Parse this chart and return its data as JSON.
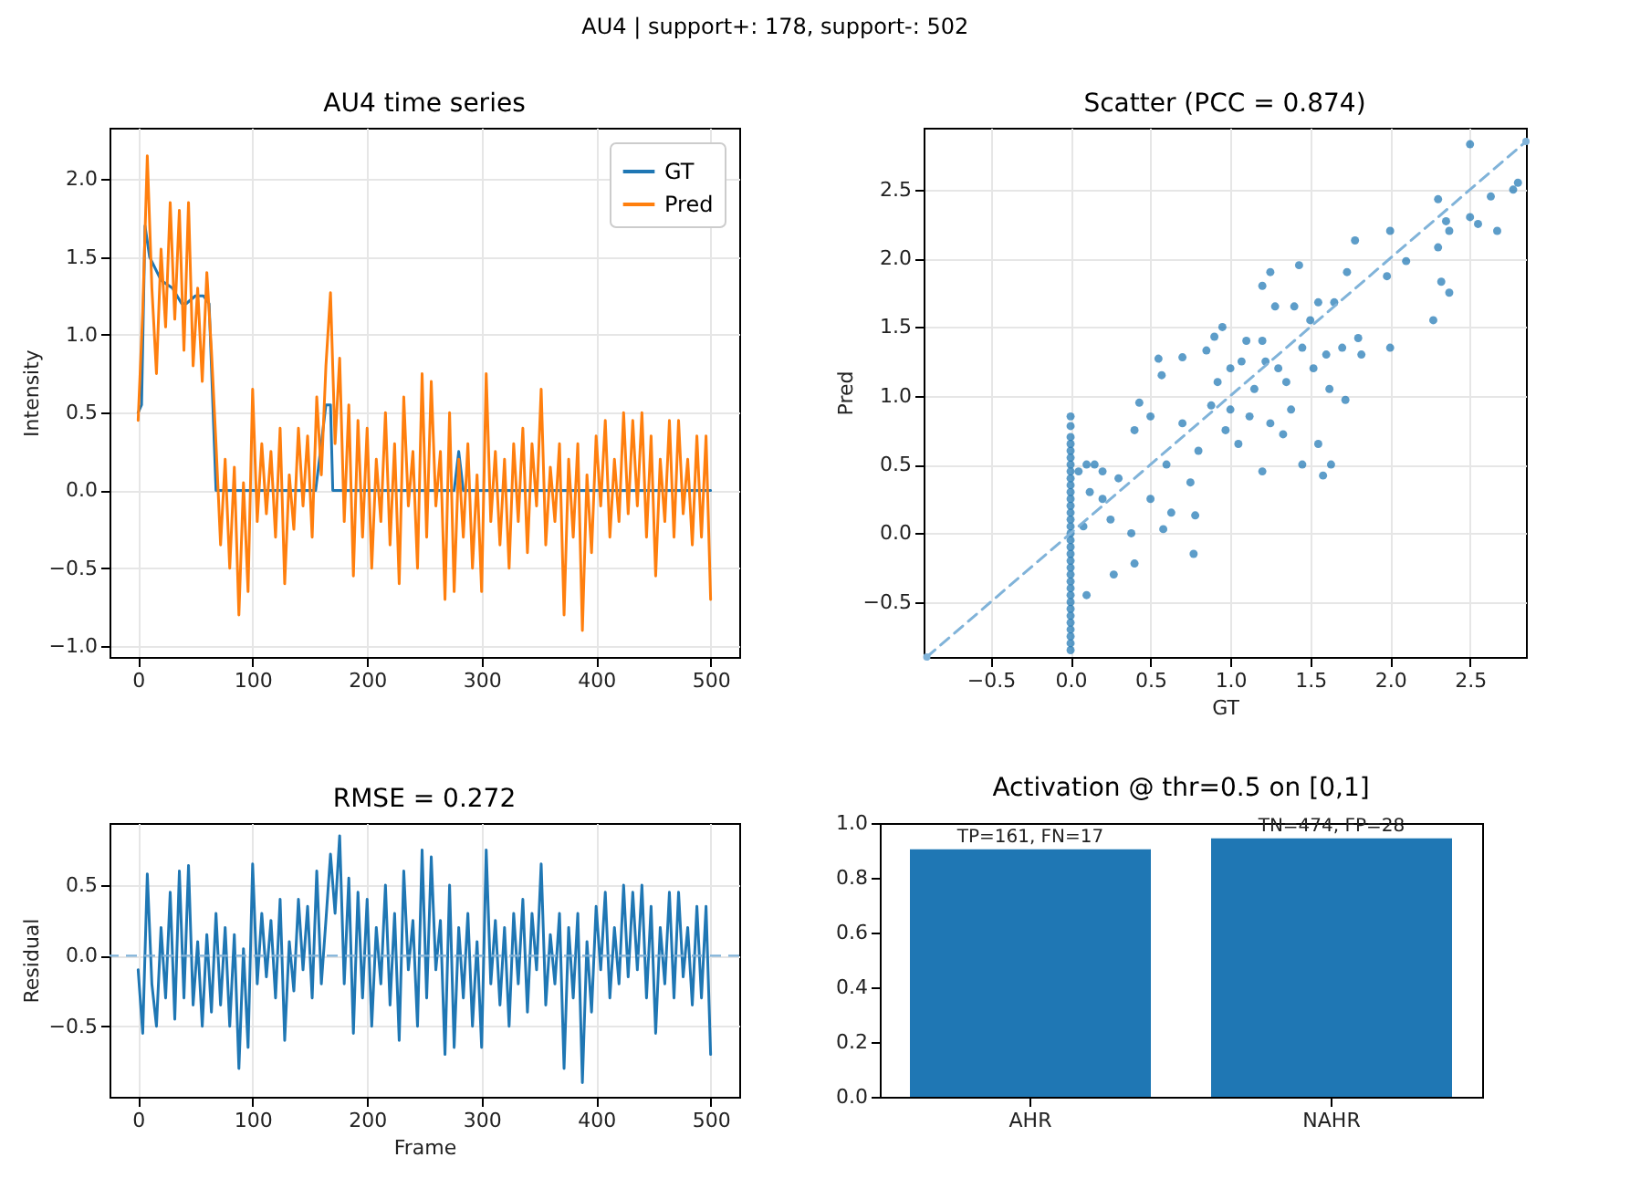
{
  "chart_data": [
    {
      "type": "line",
      "title": "AU4 time series",
      "ylabel": "Intensity",
      "annotations": [
        "AU4  |  support+: 178, support-: 502"
      ],
      "xlim": [
        -25,
        525
      ],
      "xticks": [
        0,
        100,
        200,
        300,
        400,
        500
      ],
      "ylim": [
        -1.07,
        2.33
      ],
      "yticks": [
        {
          "value": -1,
          "label": "−1.0"
        },
        {
          "value": -0.5,
          "label": "−0.5"
        },
        {
          "value": 0,
          "label": "0.0"
        },
        {
          "value": 0.5,
          "label": "0.5"
        },
        {
          "value": 1,
          "label": "1.0"
        },
        {
          "value": 1.5,
          "label": "1.5"
        },
        {
          "value": 2,
          "label": "2.0"
        }
      ],
      "grid": true,
      "legend": "top right",
      "line_style": "solid",
      "x": [
        0,
        4,
        8,
        12,
        16,
        20,
        24,
        28,
        32,
        36,
        40,
        44,
        48,
        52,
        56,
        60,
        64,
        68,
        72,
        76,
        80,
        84,
        88,
        92,
        96,
        100,
        104,
        108,
        112,
        116,
        120,
        124,
        128,
        132,
        136,
        140,
        144,
        148,
        152,
        156,
        160,
        164,
        168,
        172,
        176,
        180,
        184,
        188,
        192,
        196,
        200,
        204,
        208,
        212,
        216,
        220,
        224,
        228,
        232,
        236,
        240,
        244,
        248,
        252,
        256,
        260,
        264,
        268,
        272,
        276,
        280,
        284,
        288,
        292,
        296,
        300,
        304,
        308,
        312,
        316,
        320,
        324,
        328,
        332,
        336,
        340,
        344,
        348,
        352,
        356,
        360,
        364,
        368,
        372,
        376,
        380,
        384,
        388,
        392,
        396,
        400,
        404,
        408,
        412,
        416,
        420,
        424,
        428,
        432,
        436,
        440,
        444,
        448,
        452,
        456,
        460,
        464,
        468,
        472,
        476,
        480,
        484,
        488,
        492,
        496,
        500
      ],
      "series": [
        {
          "name": "GT",
          "color": "#1f77b4",
          "x": [
            0,
            3,
            6,
            10,
            20,
            30,
            38,
            42,
            50,
            57,
            62,
            68,
            155,
            160,
            164,
            168,
            170,
            276,
            280,
            284,
            500
          ],
          "values": [
            0.5,
            0.55,
            1.7,
            1.5,
            1.35,
            1.3,
            1.2,
            1.2,
            1.25,
            1.25,
            1.2,
            0,
            0,
            0.3,
            0.55,
            0.55,
            0,
            0,
            0.25,
            0,
            0
          ]
        },
        {
          "name": "Pred",
          "color": "#ff7f0e",
          "values": [
            0.45,
            1.15,
            2.15,
            1.3,
            0.75,
            1.55,
            1.05,
            1.85,
            1.1,
            1.8,
            0.9,
            1.85,
            0.8,
            1.3,
            0.7,
            1.4,
            0.9,
            0.3,
            -0.35,
            0.2,
            -0.5,
            0.15,
            -0.8,
            0.05,
            -0.65,
            0.65,
            -0.2,
            0.3,
            -0.15,
            0.25,
            -0.3,
            0.4,
            -0.6,
            0.1,
            -0.25,
            0.4,
            -0.1,
            0.35,
            -0.3,
            0.6,
            0.1,
            0.8,
            1.27,
            0.3,
            0.85,
            -0.2,
            0.55,
            -0.55,
            0.45,
            -0.3,
            0.4,
            -0.5,
            0.2,
            -0.2,
            0.5,
            -0.35,
            0.3,
            -0.6,
            0.6,
            -0.1,
            0.25,
            -0.5,
            0.75,
            -0.3,
            0.7,
            -0.1,
            0.25,
            -0.7,
            0.5,
            -0.65,
            0.2,
            -0.3,
            0.3,
            -0.5,
            0.1,
            -0.65,
            0.75,
            -0.2,
            0.25,
            -0.35,
            0.2,
            -0.5,
            0.3,
            -0.2,
            0.4,
            -0.4,
            0.3,
            -0.1,
            0.65,
            -0.35,
            0.15,
            -0.2,
            0.3,
            -0.8,
            0.2,
            -0.3,
            0.3,
            -0.9,
            0.1,
            -0.4,
            0.35,
            -0.1,
            0.45,
            -0.3,
            0.2,
            -0.2,
            0.5,
            -0.15,
            0.45,
            -0.1,
            0.5,
            -0.3,
            0.35,
            -0.55,
            0.2,
            -0.2,
            0.45,
            -0.3,
            0.45,
            -0.15,
            0.2,
            -0.35,
            0.35,
            -0.3,
            0.35,
            -0.7
          ]
        }
      ]
    },
    {
      "type": "scatter",
      "title": "Scatter (PCC = 0.874)",
      "xlabel": "GT",
      "ylabel": "Pred",
      "xlim": [
        -0.92,
        2.85
      ],
      "xticks": [
        {
          "value": -0.5,
          "label": "−0.5"
        },
        {
          "value": 0,
          "label": "0.0"
        },
        {
          "value": 0.5,
          "label": "0.5"
        },
        {
          "value": 1,
          "label": "1.0"
        },
        {
          "value": 1.5,
          "label": "1.5"
        },
        {
          "value": 2,
          "label": "2.0"
        },
        {
          "value": 2.5,
          "label": "2.5"
        }
      ],
      "ylim": [
        -0.9,
        2.95
      ],
      "yticks": [
        {
          "value": -0.5,
          "label": "−0.5"
        },
        {
          "value": 0,
          "label": "0.0"
        },
        {
          "value": 0.5,
          "label": "0.5"
        },
        {
          "value": 1,
          "label": "1.0"
        },
        {
          "value": 1.5,
          "label": "1.5"
        },
        {
          "value": 2,
          "label": "2.0"
        },
        {
          "value": 2.5,
          "label": "2.5"
        }
      ],
      "grid": true,
      "marker": "circle",
      "series": [
        {
          "type": "scatter",
          "color": "#1f77b4",
          "x": [
            0,
            0,
            0,
            0,
            0,
            0,
            0,
            0,
            0,
            0,
            0,
            0,
            0,
            0,
            0,
            0,
            0,
            0,
            0,
            0,
            0,
            0,
            0,
            0,
            0,
            0,
            0,
            0,
            0,
            0,
            0,
            0,
            0,
            0,
            0.05,
            0.1,
            0.1,
            0.08,
            0.12,
            0.15,
            0.2,
            0.2,
            0.25,
            0.27,
            0.3,
            0.38,
            0.4,
            0.4,
            0.43,
            0.5,
            0.5,
            0.55,
            0.57,
            0.6,
            0.63,
            0.58,
            0.7,
            0.7,
            0.75,
            0.77,
            0.78,
            0.8,
            0.85,
            0.88,
            0.9,
            0.92,
            0.95,
            0.97,
            1.0,
            1.0,
            1.05,
            1.07,
            1.1,
            1.12,
            1.15,
            1.2,
            1.2,
            1.2,
            1.22,
            1.25,
            1.25,
            1.28,
            1.3,
            1.33,
            1.35,
            1.38,
            1.4,
            1.43,
            1.45,
            1.45,
            1.5,
            1.52,
            1.55,
            1.55,
            1.58,
            1.6,
            1.62,
            1.63,
            1.65,
            1.7,
            1.72,
            1.73,
            1.78,
            1.8,
            1.82,
            1.98,
            2.0,
            2.0,
            2.1,
            2.27,
            2.3,
            2.3,
            2.32,
            2.35,
            2.37,
            2.37,
            2.5,
            2.5,
            2.55,
            2.63,
            2.67,
            2.77,
            2.8
          ],
          "values": [
            -0.85,
            -0.8,
            -0.75,
            -0.7,
            -0.65,
            -0.6,
            -0.55,
            -0.5,
            -0.45,
            -0.4,
            -0.35,
            -0.3,
            -0.25,
            -0.2,
            -0.15,
            -0.1,
            -0.05,
            0,
            0.05,
            0.1,
            0.15,
            0.2,
            0.25,
            0.3,
            0.35,
            0.4,
            0.45,
            0.5,
            0.55,
            0.6,
            0.65,
            0.7,
            0.78,
            0.85,
            0.45,
            0.5,
            -0.45,
            0.05,
            0.3,
            0.5,
            0.25,
            0.45,
            0.1,
            -0.3,
            0.4,
            0.0,
            -0.22,
            0.75,
            0.95,
            0.85,
            0.25,
            1.27,
            1.15,
            0.5,
            0.15,
            0.03,
            1.28,
            0.8,
            0.37,
            -0.15,
            0.13,
            0.6,
            1.33,
            0.93,
            1.43,
            1.1,
            1.5,
            0.75,
            1.2,
            0.9,
            0.65,
            1.25,
            1.4,
            0.85,
            1.05,
            1.8,
            1.4,
            0.45,
            1.25,
            1.9,
            0.8,
            1.65,
            1.2,
            0.72,
            1.1,
            0.9,
            1.65,
            1.95,
            0.5,
            1.35,
            1.55,
            1.2,
            1.68,
            0.65,
            0.42,
            1.3,
            1.05,
            0.5,
            1.68,
            1.35,
            0.97,
            1.9,
            2.13,
            1.42,
            1.3,
            1.87,
            2.2,
            1.35,
            1.98,
            1.55,
            2.43,
            2.08,
            1.83,
            2.27,
            2.2,
            1.75,
            2.3,
            2.83,
            2.25,
            2.45,
            2.2,
            2.5,
            2.55
          ]
        },
        {
          "type": "line",
          "color": "#80b3d9",
          "line_style": "dashed",
          "x": [
            -0.9,
            2.85
          ],
          "values": [
            -0.9,
            2.85
          ]
        }
      ]
    },
    {
      "type": "line",
      "title": "RMSE = 0.272",
      "xlabel": "Frame",
      "ylabel": "Residual",
      "xlim": [
        -25,
        525
      ],
      "xticks": [
        0,
        100,
        200,
        300,
        400,
        500
      ],
      "ylim": [
        -1.0,
        0.94
      ],
      "yticks": [
        {
          "value": -0.5,
          "label": "−0.5"
        },
        {
          "value": 0,
          "label": "0.0"
        },
        {
          "value": 0.5,
          "label": "0.5"
        }
      ],
      "grid": true,
      "line_style": "solid",
      "ref_lines": [
        {
          "axis": "y",
          "value": 0,
          "color": "#80b3d9",
          "line_style": "dashed"
        }
      ],
      "x": [
        0,
        4,
        8,
        12,
        16,
        20,
        24,
        28,
        32,
        36,
        40,
        44,
        48,
        52,
        56,
        60,
        64,
        68,
        72,
        76,
        80,
        84,
        88,
        92,
        96,
        100,
        104,
        108,
        112,
        116,
        120,
        124,
        128,
        132,
        136,
        140,
        144,
        148,
        152,
        156,
        160,
        164,
        168,
        172,
        176,
        180,
        184,
        188,
        192,
        196,
        200,
        204,
        208,
        212,
        216,
        220,
        224,
        228,
        232,
        236,
        240,
        244,
        248,
        252,
        256,
        260,
        264,
        268,
        272,
        276,
        280,
        284,
        288,
        292,
        296,
        300,
        304,
        308,
        312,
        316,
        320,
        324,
        328,
        332,
        336,
        340,
        344,
        348,
        352,
        356,
        360,
        364,
        368,
        372,
        376,
        380,
        384,
        388,
        392,
        396,
        400,
        404,
        408,
        412,
        416,
        420,
        424,
        428,
        432,
        436,
        440,
        444,
        448,
        452,
        456,
        460,
        464,
        468,
        472,
        476,
        480,
        484,
        488,
        492,
        496,
        500
      ],
      "series": [
        {
          "color": "#1f77b4",
          "values": [
            -0.1,
            -0.55,
            0.58,
            -0.2,
            -0.5,
            0.2,
            -0.3,
            0.45,
            -0.45,
            0.6,
            -0.3,
            0.64,
            -0.35,
            0.1,
            -0.5,
            0.15,
            -0.4,
            0.3,
            -0.35,
            0.2,
            -0.5,
            0.15,
            -0.8,
            0.05,
            -0.65,
            0.65,
            -0.2,
            0.3,
            -0.15,
            0.25,
            -0.3,
            0.4,
            -0.6,
            0.1,
            -0.25,
            0.4,
            -0.1,
            0.35,
            -0.3,
            0.6,
            -0.2,
            0.25,
            0.72,
            0.3,
            0.85,
            -0.2,
            0.55,
            -0.55,
            0.45,
            -0.3,
            0.4,
            -0.5,
            0.2,
            -0.2,
            0.5,
            -0.35,
            0.3,
            -0.6,
            0.6,
            -0.1,
            0.25,
            -0.5,
            0.75,
            -0.3,
            0.7,
            -0.1,
            0.25,
            -0.7,
            0.5,
            -0.65,
            0.2,
            -0.3,
            0.3,
            -0.5,
            0.1,
            -0.65,
            0.75,
            -0.2,
            0.25,
            -0.35,
            0.2,
            -0.5,
            0.3,
            -0.2,
            0.4,
            -0.4,
            0.3,
            -0.1,
            0.65,
            -0.35,
            0.15,
            -0.2,
            0.3,
            -0.8,
            0.2,
            -0.3,
            0.3,
            -0.9,
            0.1,
            -0.4,
            0.35,
            -0.1,
            0.45,
            -0.3,
            0.2,
            -0.2,
            0.5,
            -0.15,
            0.45,
            -0.1,
            0.5,
            -0.3,
            0.35,
            -0.55,
            0.2,
            -0.2,
            0.45,
            -0.3,
            0.45,
            -0.15,
            0.2,
            -0.35,
            0.35,
            -0.3,
            0.35,
            -0.7
          ]
        }
      ]
    },
    {
      "type": "bar",
      "title": "Activation @ thr=0.5 on [0,1]",
      "categories": [
        "AHR",
        "NAHR"
      ],
      "values": [
        0.904,
        0.944
      ],
      "color": "#1f77b4",
      "value_labels": [
        "TP=161, FN=17",
        "TN=474, FP=28"
      ],
      "ylim": [
        0,
        1
      ],
      "yticks": [
        {
          "value": 0,
          "label": "0.0"
        },
        {
          "value": 0.2,
          "label": "0.2"
        },
        {
          "value": 0.4,
          "label": "0.4"
        },
        {
          "value": 0.6,
          "label": "0.6"
        },
        {
          "value": 0.8,
          "label": "0.8"
        },
        {
          "value": 1,
          "label": "1.0"
        }
      ]
    }
  ]
}
